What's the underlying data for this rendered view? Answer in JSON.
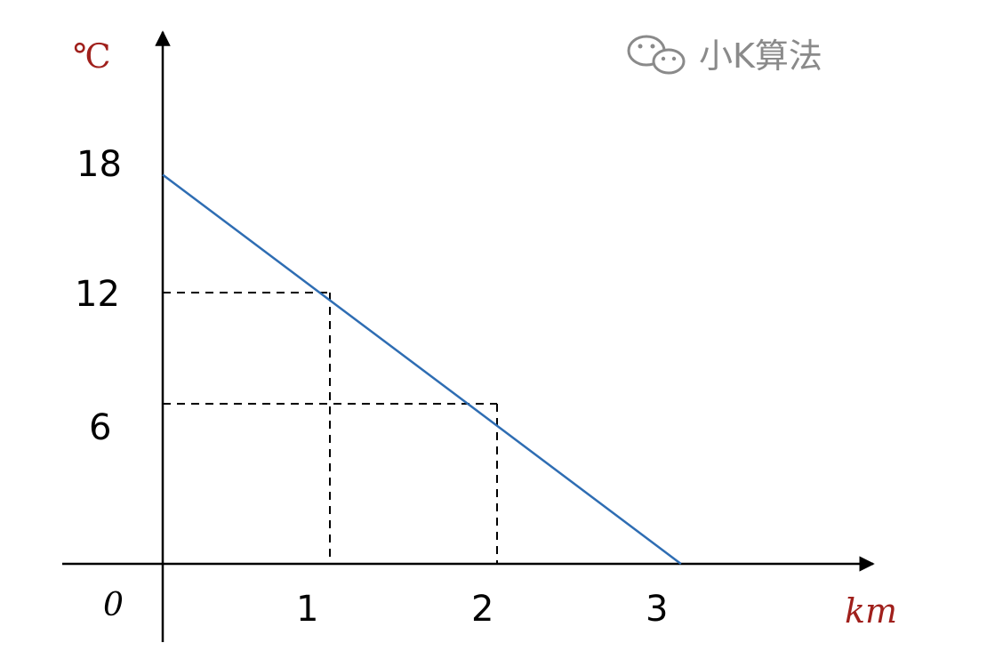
{
  "chart_data": {
    "type": "line",
    "ylabel": "℃",
    "xlabel": "km",
    "origin_label": "0",
    "x_ticks": [
      "1",
      "2",
      "3"
    ],
    "y_ticks": [
      "6",
      "12",
      "18"
    ],
    "series": [
      {
        "x": [
          0,
          3.1
        ],
        "y": [
          17.5,
          0
        ],
        "color": "#2e6db3"
      }
    ],
    "guides": [
      {
        "x": 1,
        "y": 12.2
      },
      {
        "x": 2,
        "y": 7.2
      }
    ],
    "xlim": [
      0,
      3.6
    ],
    "ylim": [
      0,
      21
    ],
    "grid": false,
    "legend": "none"
  },
  "watermark": {
    "icon": "wechat-icon",
    "text": "小K算法"
  }
}
